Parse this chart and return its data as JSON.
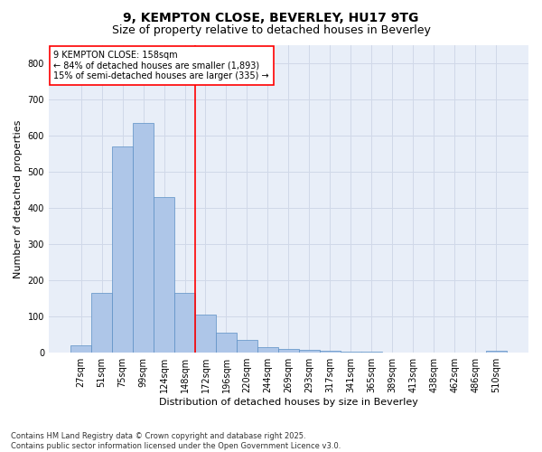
{
  "title1": "9, KEMPTON CLOSE, BEVERLEY, HU17 9TG",
  "title2": "Size of property relative to detached houses in Beverley",
  "xlabel": "Distribution of detached houses by size in Beverley",
  "ylabel": "Number of detached properties",
  "categories": [
    "27sqm",
    "51sqm",
    "75sqm",
    "99sqm",
    "124sqm",
    "148sqm",
    "172sqm",
    "196sqm",
    "220sqm",
    "244sqm",
    "269sqm",
    "293sqm",
    "317sqm",
    "341sqm",
    "365sqm",
    "389sqm",
    "413sqm",
    "438sqm",
    "462sqm",
    "486sqm",
    "510sqm"
  ],
  "values": [
    20,
    165,
    570,
    635,
    430,
    165,
    105,
    55,
    35,
    15,
    10,
    8,
    5,
    3,
    2,
    1,
    1,
    0,
    0,
    0,
    5
  ],
  "bar_color": "#aec6e8",
  "bar_edge_color": "#5b8fc4",
  "grid_color": "#d0d8e8",
  "background_color": "#e8eef8",
  "vline_x": 5.5,
  "vline_color": "red",
  "annotation_text": "9 KEMPTON CLOSE: 158sqm\n← 84% of detached houses are smaller (1,893)\n15% of semi-detached houses are larger (335) →",
  "annotation_box_color": "white",
  "annotation_box_edge": "red",
  "ylim": [
    0,
    850
  ],
  "yticks": [
    0,
    100,
    200,
    300,
    400,
    500,
    600,
    700,
    800
  ],
  "footer": "Contains HM Land Registry data © Crown copyright and database right 2025.\nContains public sector information licensed under the Open Government Licence v3.0.",
  "title1_fontsize": 10,
  "title2_fontsize": 9,
  "tick_fontsize": 7,
  "label_fontsize": 8,
  "annotation_fontsize": 7,
  "footer_fontsize": 6
}
